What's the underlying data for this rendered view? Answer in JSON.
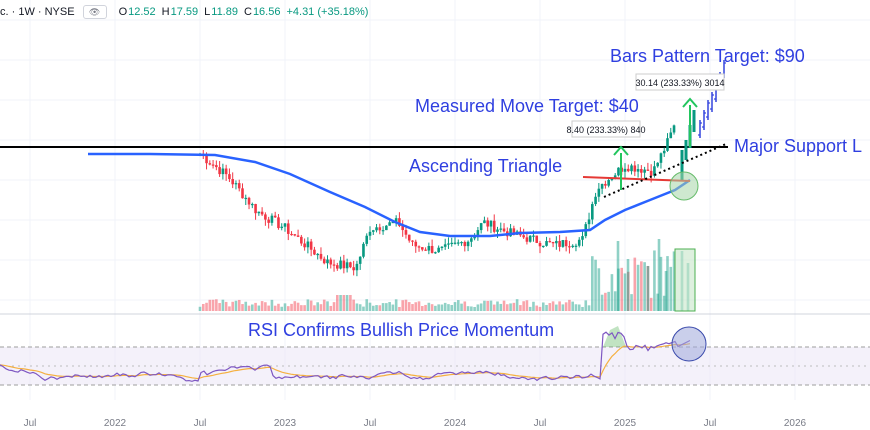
{
  "header": {
    "symbol": "c. · 1W · NYSE",
    "ohlc": [
      {
        "key": "O",
        "value": "12.52"
      },
      {
        "key": "H",
        "value": "17.59"
      },
      {
        "key": "L",
        "value": "11.89"
      },
      {
        "key": "C",
        "value": "16.56"
      }
    ],
    "change": "+4.31 (+35.18%)"
  },
  "colors": {
    "up": "#089981",
    "down": "#f23645",
    "ma": "#2962ff",
    "annotation_text": "#2f3fe0",
    "arrow": "#22c55e",
    "trend_red": "#e53935",
    "rsi": "#7e57c2",
    "rsi_signal": "#f5b041",
    "bars_pattern": "#3344dd"
  },
  "chart_data": [
    {
      "type": "candlestick",
      "x_axis_labels": [
        "Jul",
        "2022",
        "Jul",
        "2023",
        "Jul",
        "2024",
        "Jul",
        "2025",
        "Jul",
        "2026"
      ],
      "approx_weekly_close_path": [
        {
          "date": "2022-07",
          "close": 14.0
        },
        {
          "date": "2022-09",
          "close": 12.0
        },
        {
          "date": "2022-11",
          "close": 9.0
        },
        {
          "date": "2023-01",
          "close": 7.5
        },
        {
          "date": "2023-04",
          "close": 4.5
        },
        {
          "date": "2023-06",
          "close": 4.0
        },
        {
          "date": "2023-07",
          "close": 7.5
        },
        {
          "date": "2023-09",
          "close": 8.0
        },
        {
          "date": "2023-10",
          "close": 6.0
        },
        {
          "date": "2023-12",
          "close": 5.5
        },
        {
          "date": "2024-02",
          "close": 6.5
        },
        {
          "date": "2024-03",
          "close": 8.0
        },
        {
          "date": "2024-05",
          "close": 7.0
        },
        {
          "date": "2024-08",
          "close": 6.0
        },
        {
          "date": "2024-10",
          "close": 6.5
        },
        {
          "date": "2024-11",
          "close": 11.0
        },
        {
          "date": "2025-01",
          "close": 13.0
        },
        {
          "date": "2025-03",
          "close": 12.5
        },
        {
          "date": "2025-04",
          "close": 15.0
        },
        {
          "date": "2025-05",
          "close": 18.0
        },
        {
          "date": "2025-06",
          "close": 26.0
        }
      ],
      "moving_average": "blue line",
      "horizontal_level": "Major Support",
      "annotations": [
        {
          "text": "Bars Pattern Target: $90"
        },
        {
          "text": "Measured Move Target: $40"
        },
        {
          "text": "Ascending Triangle"
        },
        {
          "text": "Major Support L"
        }
      ],
      "measure_labels": [
        "8.40 (233.33%) 840",
        "30.14 (233.33%) 3014"
      ]
    },
    {
      "type": "bar",
      "name": "Volume",
      "note": "weekly volume, spikes late 2024 – mid 2025"
    },
    {
      "type": "line",
      "name": "RSI",
      "annotation": "RSI Confirms Bullish Price Momentum"
    }
  ]
}
